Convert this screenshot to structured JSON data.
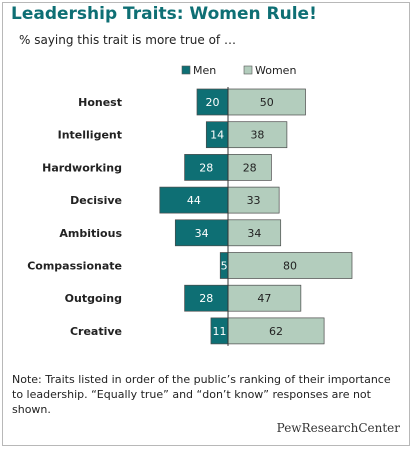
{
  "title": "Leadership Traits: Women Rule!",
  "subtitle": "% saying this trait is more true of …",
  "note": "Note: Traits listed in order of the public’s ranking of their importance to leadership. “Equally true” and “don’t know” responses are not shown.",
  "logo": "PewResearchCenter",
  "colors": {
    "men": "#0e6f74",
    "women": "#b3cdbd",
    "title": "#0e6f74"
  },
  "chart_data": {
    "type": "bar",
    "orientation": "horizontal-diverging",
    "categories": [
      "Honest",
      "Intelligent",
      "Hardworking",
      "Decisive",
      "Ambitious",
      "Compassionate",
      "Outgoing",
      "Creative"
    ],
    "series": [
      {
        "name": "Men",
        "values": [
          20,
          14,
          28,
          44,
          34,
          5,
          28,
          11
        ]
      },
      {
        "name": "Women",
        "values": [
          50,
          38,
          28,
          33,
          34,
          80,
          47,
          62
        ]
      }
    ],
    "legend_position": "top",
    "grid": false
  }
}
